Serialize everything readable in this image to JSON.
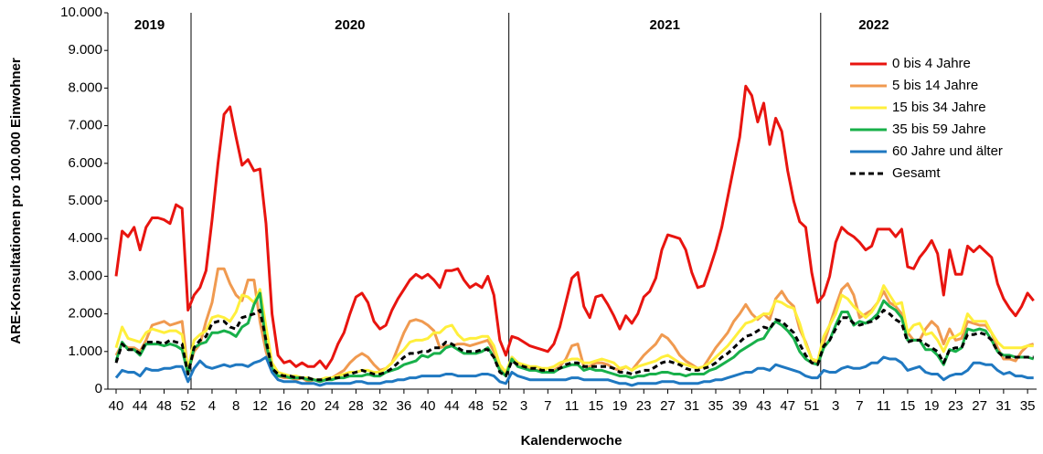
{
  "chart_data": {
    "type": "line",
    "y_label": "ARE-Konsultationen pro 100.000 Einwohner",
    "x_label": "Kalenderwoche",
    "year_labels": [
      "2019",
      "2020",
      "2021",
      "2022"
    ],
    "categories": [
      "40",
      null,
      null,
      null,
      "44",
      null,
      null,
      null,
      "48",
      null,
      null,
      null,
      "52",
      null,
      null,
      null,
      "4",
      null,
      null,
      null,
      "8",
      null,
      null,
      null,
      "12",
      null,
      null,
      null,
      "16",
      null,
      null,
      null,
      "20",
      null,
      null,
      null,
      "24",
      null,
      null,
      null,
      "28",
      null,
      null,
      null,
      "32",
      null,
      null,
      null,
      "36",
      null,
      null,
      null,
      "40",
      null,
      null,
      null,
      "44",
      null,
      null,
      null,
      "48",
      null,
      null,
      null,
      "52",
      null,
      null,
      null,
      "3",
      null,
      null,
      null,
      "7",
      null,
      null,
      null,
      "11",
      null,
      null,
      null,
      "15",
      null,
      null,
      null,
      "19",
      null,
      null,
      null,
      "23",
      null,
      null,
      null,
      "27",
      null,
      null,
      null,
      "31",
      null,
      null,
      null,
      "35",
      null,
      null,
      null,
      "39",
      null,
      null,
      null,
      "43",
      null,
      null,
      null,
      "47",
      null,
      null,
      null,
      "51",
      null,
      null,
      null,
      "3",
      null,
      null,
      null,
      "7",
      null,
      null,
      null,
      "11",
      null,
      null,
      null,
      "15",
      null,
      null,
      null,
      "19",
      null,
      null,
      null,
      "23",
      null,
      null,
      null,
      "27",
      null,
      null,
      null,
      "31",
      null,
      null,
      null,
      "35",
      null
    ],
    "ylim": [
      0,
      10000
    ],
    "yticks": [
      0,
      {
        "value": 1000,
        "label": "1.000"
      },
      {
        "value": 2000,
        "label": "2.000"
      },
      {
        "value": 3000,
        "label": "3.000"
      },
      {
        "value": 4000,
        "label": "4.000"
      },
      {
        "value": 5000,
        "label": "5.000"
      },
      {
        "value": 6000,
        "label": "6.000"
      },
      {
        "value": 7000,
        "label": "7.000"
      },
      {
        "value": 8000,
        "label": "8.000"
      },
      {
        "value": 9000,
        "label": "9.000"
      },
      {
        "value": 10000,
        "label": "10.000"
      }
    ],
    "series": [
      {
        "name": "0 bis 4 Jahre",
        "color": "#e8140f",
        "dashed": false,
        "values": [
          3000,
          4200,
          4050,
          4300,
          3700,
          4300,
          4550,
          4550,
          4500,
          4400,
          4900,
          4800,
          2100,
          2500,
          2700,
          3150,
          4500,
          6000,
          7300,
          7500,
          6700,
          5950,
          6100,
          5800,
          5850,
          4400,
          2000,
          900,
          700,
          750,
          600,
          700,
          600,
          600,
          750,
          550,
          800,
          1200,
          1500,
          2000,
          2450,
          2550,
          2300,
          1800,
          1600,
          1700,
          2100,
          2400,
          2650,
          2900,
          3050,
          2950,
          3050,
          2900,
          2700,
          3150,
          3150,
          3200,
          2900,
          2700,
          2800,
          2700,
          3000,
          2500,
          1300,
          900,
          1400,
          1350,
          1250,
          1150,
          1100,
          1050,
          1000,
          1200,
          1650,
          2300,
          2950,
          3100,
          2200,
          1900,
          2450,
          2500,
          2250,
          1950,
          1600,
          1950,
          1750,
          2000,
          2450,
          2600,
          2950,
          3700,
          4100,
          4050,
          4000,
          3700,
          3100,
          2700,
          2750,
          3200,
          3700,
          4300,
          5100,
          5900,
          6700,
          8050,
          7800,
          7100,
          7600,
          6500,
          7200,
          6850,
          5800,
          5000,
          4450,
          4300,
          3100,
          2300,
          2500,
          3000,
          3900,
          4300,
          4150,
          4050,
          3900,
          3700,
          3800,
          4250,
          4250,
          4250,
          4050,
          4250,
          3250,
          3200,
          3500,
          3700,
          3950,
          3600,
          2500,
          3700,
          3050,
          3050,
          3800,
          3650,
          3800,
          3650,
          3500,
          2800,
          2400,
          2150,
          1950,
          2200,
          2550,
          2350
        ]
      },
      {
        "name": "5 bis 14 Jahre",
        "color": "#f09a50",
        "dashed": false,
        "values": [
          900,
          1200,
          1100,
          1100,
          1000,
          1300,
          1700,
          1750,
          1800,
          1700,
          1750,
          1800,
          450,
          1000,
          1200,
          1800,
          2300,
          3200,
          3200,
          2800,
          2500,
          2350,
          2900,
          2900,
          1800,
          1000,
          500,
          350,
          300,
          300,
          250,
          300,
          200,
          250,
          200,
          250,
          300,
          400,
          500,
          700,
          850,
          950,
          850,
          650,
          500,
          550,
          700,
          1100,
          1500,
          1800,
          1850,
          1800,
          1700,
          1550,
          1100,
          1150,
          1150,
          1200,
          1200,
          1150,
          1200,
          1250,
          1300,
          1000,
          550,
          400,
          850,
          700,
          600,
          550,
          500,
          500,
          450,
          500,
          600,
          800,
          1150,
          1200,
          600,
          600,
          700,
          700,
          650,
          550,
          500,
          600,
          500,
          700,
          900,
          1050,
          1200,
          1450,
          1350,
          1150,
          900,
          750,
          650,
          550,
          600,
          850,
          1100,
          1300,
          1500,
          1800,
          2000,
          2250,
          2000,
          1850,
          2000,
          1850,
          2400,
          2600,
          2350,
          2200,
          1600,
          1250,
          800,
          700,
          1200,
          1700,
          2200,
          2650,
          2800,
          2500,
          1900,
          2000,
          2100,
          2300,
          2600,
          2300,
          2200,
          2000,
          1500,
          1300,
          1300,
          1600,
          1800,
          1650,
          1200,
          1600,
          1300,
          1350,
          1800,
          1750,
          1700,
          1700,
          1500,
          1100,
          800,
          800,
          750,
          1000,
          1150,
          1200
        ]
      },
      {
        "name": "15 bis 34 Jahre",
        "color": "#ffef3c",
        "dashed": false,
        "values": [
          1100,
          1650,
          1350,
          1300,
          1250,
          1500,
          1600,
          1550,
          1500,
          1550,
          1550,
          1450,
          500,
          1300,
          1450,
          1550,
          1900,
          1950,
          1900,
          1800,
          2050,
          2500,
          2450,
          2300,
          2650,
          1650,
          700,
          450,
          400,
          350,
          350,
          300,
          300,
          250,
          250,
          300,
          300,
          350,
          400,
          450,
          450,
          500,
          500,
          450,
          450,
          550,
          700,
          900,
          1050,
          1250,
          1300,
          1300,
          1350,
          1500,
          1500,
          1650,
          1700,
          1450,
          1300,
          1350,
          1350,
          1400,
          1400,
          1150,
          650,
          450,
          850,
          700,
          650,
          600,
          600,
          550,
          550,
          600,
          700,
          750,
          800,
          800,
          700,
          700,
          750,
          800,
          750,
          700,
          550,
          600,
          500,
          600,
          650,
          700,
          750,
          850,
          900,
          800,
          700,
          650,
          600,
          550,
          600,
          700,
          850,
          1000,
          1150,
          1350,
          1550,
          1750,
          1800,
          1900,
          2000,
          2000,
          2350,
          2300,
          2200,
          2150,
          1750,
          1200,
          800,
          750,
          1400,
          1700,
          2000,
          2500,
          2400,
          2200,
          2050,
          1900,
          2050,
          2300,
          2750,
          2500,
          2250,
          2300,
          1500,
          1700,
          1750,
          1450,
          1500,
          1300,
          1000,
          1350,
          1400,
          1500,
          2000,
          1800,
          1800,
          1800,
          1500,
          1250,
          1100,
          1100,
          1100,
          1100,
          1150,
          1150
        ]
      },
      {
        "name": "35 bis 59 Jahre",
        "color": "#18b04a",
        "dashed": false,
        "values": [
          750,
          1250,
          1050,
          1050,
          900,
          1200,
          1200,
          1200,
          1150,
          1200,
          1150,
          1050,
          400,
          1100,
          1200,
          1250,
          1500,
          1500,
          1550,
          1500,
          1400,
          1650,
          1750,
          2250,
          2550,
          1200,
          550,
          350,
          350,
          300,
          300,
          300,
          250,
          250,
          200,
          250,
          250,
          300,
          300,
          350,
          350,
          350,
          400,
          350,
          350,
          450,
          500,
          550,
          650,
          700,
          750,
          900,
          850,
          950,
          950,
          1100,
          1150,
          1050,
          950,
          950,
          950,
          1000,
          1100,
          850,
          500,
          350,
          800,
          600,
          550,
          500,
          500,
          450,
          450,
          450,
          550,
          600,
          650,
          650,
          500,
          550,
          500,
          500,
          450,
          400,
          350,
          350,
          300,
          350,
          350,
          400,
          400,
          450,
          450,
          400,
          400,
          350,
          400,
          400,
          400,
          500,
          550,
          650,
          750,
          850,
          1000,
          1100,
          1200,
          1300,
          1350,
          1600,
          1800,
          1700,
          1550,
          1350,
          1000,
          800,
          700,
          650,
          1100,
          1300,
          1700,
          2050,
          2050,
          1700,
          1800,
          1750,
          1850,
          2000,
          2350,
          2200,
          2100,
          1900,
          1300,
          1300,
          1300,
          1050,
          1050,
          900,
          650,
          1050,
          1000,
          1100,
          1600,
          1550,
          1600,
          1550,
          1300,
          1000,
          900,
          900,
          850,
          850,
          850,
          800
        ]
      },
      {
        "name": "60 Jahre und älter",
        "color": "#1f78c1",
        "dashed": false,
        "values": [
          300,
          500,
          450,
          450,
          350,
          550,
          500,
          500,
          550,
          550,
          600,
          600,
          200,
          550,
          750,
          600,
          550,
          600,
          650,
          600,
          650,
          650,
          600,
          700,
          750,
          850,
          450,
          250,
          200,
          200,
          200,
          150,
          150,
          150,
          100,
          150,
          150,
          150,
          150,
          150,
          200,
          200,
          150,
          150,
          150,
          200,
          200,
          250,
          250,
          300,
          300,
          350,
          350,
          350,
          350,
          400,
          400,
          350,
          350,
          350,
          350,
          400,
          400,
          350,
          200,
          150,
          450,
          350,
          300,
          250,
          250,
          250,
          250,
          250,
          250,
          250,
          300,
          300,
          250,
          250,
          250,
          250,
          250,
          200,
          150,
          150,
          100,
          150,
          150,
          150,
          150,
          200,
          200,
          200,
          150,
          150,
          150,
          150,
          200,
          200,
          250,
          250,
          300,
          350,
          400,
          450,
          450,
          550,
          550,
          500,
          650,
          600,
          550,
          500,
          450,
          350,
          300,
          300,
          500,
          450,
          450,
          550,
          600,
          550,
          550,
          600,
          700,
          700,
          850,
          800,
          800,
          700,
          500,
          550,
          600,
          450,
          400,
          400,
          250,
          350,
          400,
          400,
          500,
          700,
          700,
          650,
          650,
          500,
          400,
          450,
          350,
          350,
          300,
          300
        ]
      },
      {
        "name": "Gesamt",
        "color": "#000000",
        "dashed": true,
        "values": [
          700,
          1200,
          1050,
          1050,
          950,
          1250,
          1250,
          1250,
          1200,
          1300,
          1250,
          1200,
          400,
          1100,
          1300,
          1400,
          1750,
          1800,
          1800,
          1650,
          1600,
          1900,
          1950,
          2000,
          2100,
          1300,
          550,
          400,
          350,
          350,
          300,
          300,
          300,
          250,
          250,
          250,
          300,
          300,
          350,
          400,
          450,
          500,
          450,
          400,
          400,
          450,
          550,
          700,
          850,
          950,
          950,
          1000,
          1000,
          1100,
          1100,
          1250,
          1200,
          1100,
          1000,
          1000,
          1000,
          1050,
          1050,
          850,
          450,
          350,
          750,
          650,
          600,
          550,
          550,
          500,
          500,
          500,
          550,
          650,
          700,
          700,
          600,
          600,
          600,
          600,
          600,
          550,
          450,
          450,
          400,
          450,
          500,
          500,
          600,
          700,
          750,
          700,
          650,
          550,
          500,
          500,
          550,
          600,
          700,
          850,
          950,
          1100,
          1250,
          1400,
          1450,
          1550,
          1650,
          1600,
          1850,
          1800,
          1650,
          1500,
          1200,
          900,
          700,
          650,
          1150,
          1300,
          1600,
          1900,
          1900,
          1750,
          1700,
          1750,
          1800,
          1900,
          2100,
          2000,
          1850,
          1750,
          1250,
          1300,
          1300,
          1200,
          1100,
          1000,
          700,
          1050,
          1100,
          1100,
          1450,
          1450,
          1500,
          1450,
          1300,
          1000,
          850,
          850,
          850,
          850,
          850,
          850
        ]
      }
    ]
  }
}
